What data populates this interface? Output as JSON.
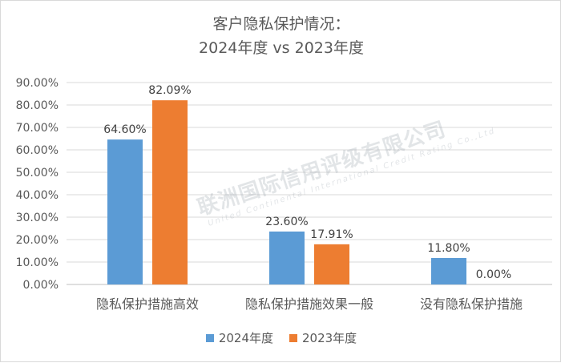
{
  "chart_data": {
    "type": "bar",
    "title_line1": "客户隐私保护情况：",
    "title_line2": "2024年度 vs 2023年度",
    "categories": [
      "隐私保护措施高效",
      "隐私保护措施效果一般",
      "没有隐私保护措施"
    ],
    "series": [
      {
        "name": "2024年度",
        "values": [
          64.6,
          23.6,
          11.8
        ],
        "labels": [
          "64.60%",
          "23.60%",
          "11.80%"
        ],
        "color": "#5b9bd5"
      },
      {
        "name": "2023年度",
        "values": [
          82.09,
          17.91,
          0.0
        ],
        "labels": [
          "82.09%",
          "17.91%",
          "0.00%"
        ],
        "color": "#ed7d31"
      }
    ],
    "yticks": [
      "0.00%",
      "10.00%",
      "20.00%",
      "30.00%",
      "40.00%",
      "50.00%",
      "60.00%",
      "70.00%",
      "80.00%",
      "90.00%"
    ],
    "ylim": [
      0,
      90
    ],
    "grid": true,
    "legend_position": "bottom"
  },
  "watermark": {
    "cn": "联洲国际信用评级有限公司",
    "en": "United Continental International Credit Rating Co.,Ltd"
  }
}
